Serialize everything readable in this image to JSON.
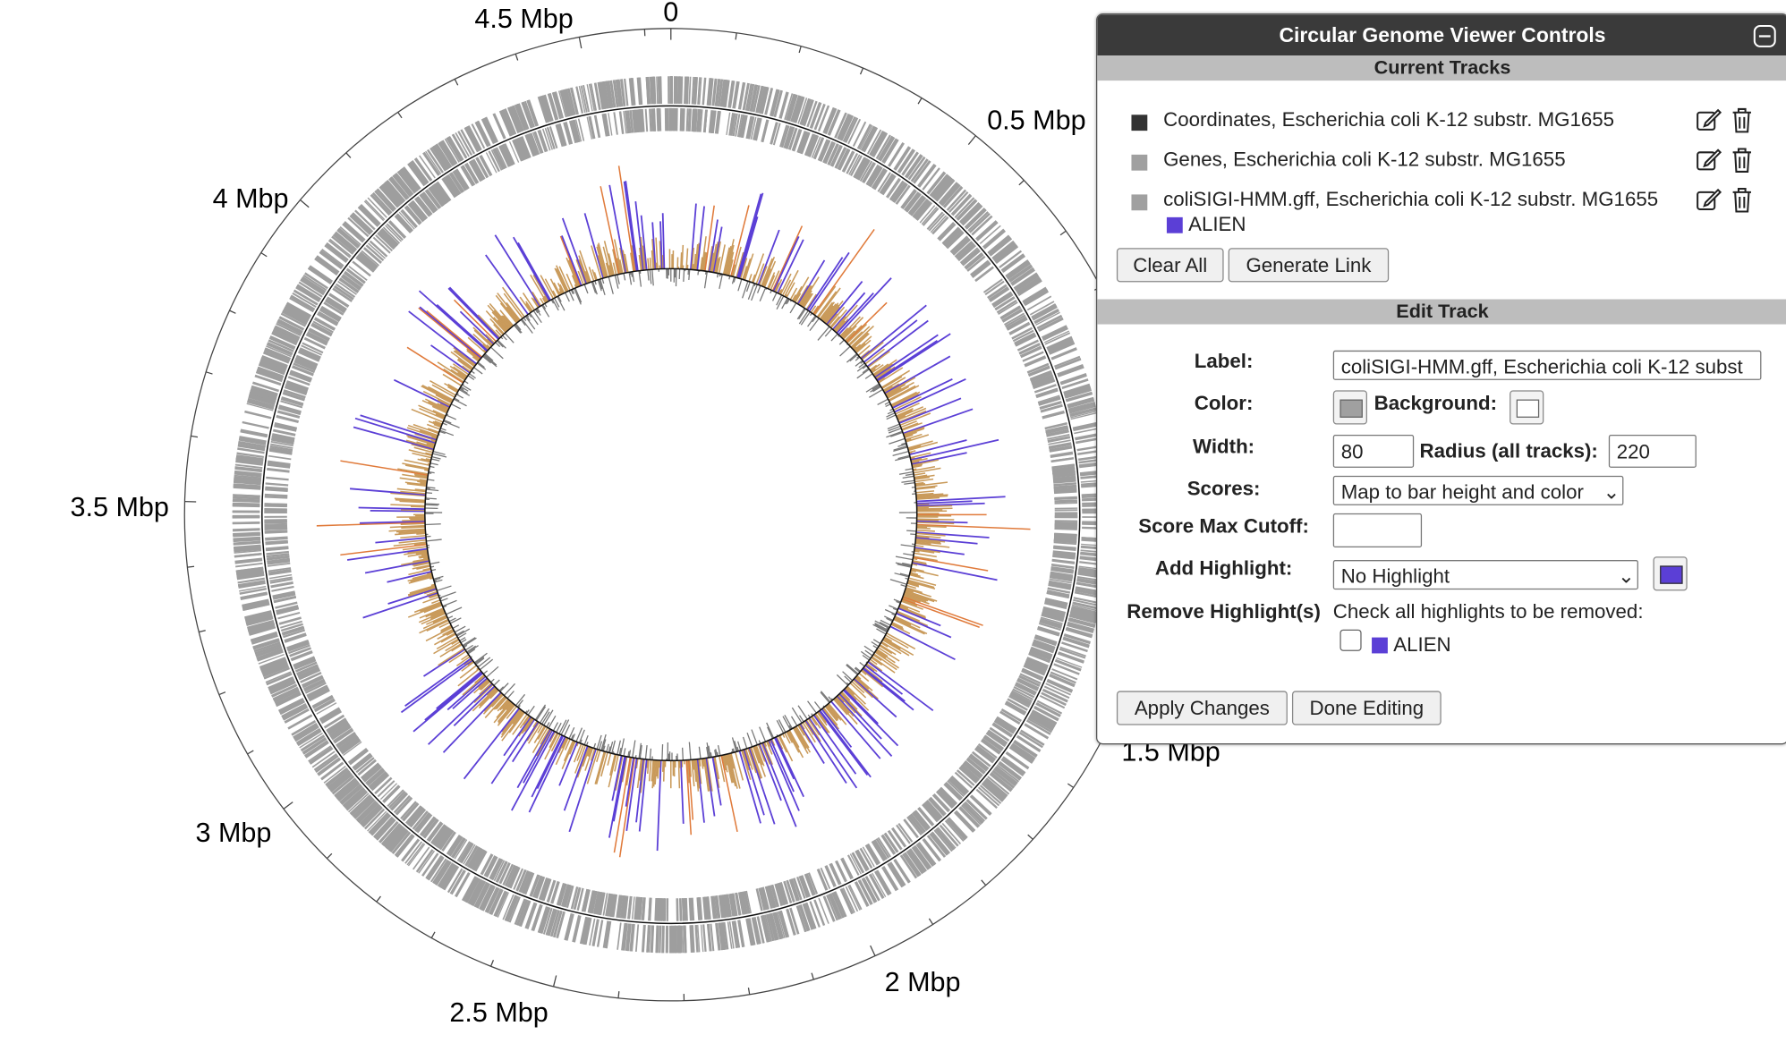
{
  "genome_map": {
    "tick_labels": [
      "0",
      "0.5 Mbp",
      "1.5 Mbp",
      "2 Mbp",
      "2.5 Mbp",
      "3 Mbp",
      "3.5 Mbp",
      "4 Mbp",
      "4.5 Mbp"
    ]
  },
  "panel": {
    "title": "Circular Genome Viewer Controls",
    "current_tracks": {
      "title": "Current Tracks",
      "tracks": [
        {
          "label": "Coordinates, Escherichia coli K-12 substr. MG1655"
        },
        {
          "label": "Genes, Escherichia coli K-12 substr. MG1655"
        },
        {
          "label": "coliSIGI-HMM.gff, Escherichia coli K-12 substr. MG1655",
          "highlight": "ALIEN"
        }
      ],
      "buttons": [
        "Clear All",
        "Generate Link"
      ]
    },
    "edit_track": {
      "title": "Edit Track",
      "label_field": {
        "label": "Label:",
        "value": "coliSIGI-HMM.gff, Escherichia coli K-12 subst"
      },
      "color_field": {
        "label": "Color:",
        "background_label": "Background:"
      },
      "width_field": {
        "label": "Width:",
        "value": "80",
        "radius_label": "Radius (all tracks):",
        "radius_value": "220"
      },
      "scores_field": {
        "label": "Scores:",
        "value": "Map to bar height and color"
      },
      "cutoff_field": {
        "label": "Score Max Cutoff:"
      },
      "highlight_field": {
        "label": "Add Highlight:",
        "value": "No Highlight"
      },
      "remove_field": {
        "label": "Remove Highlight(s)",
        "hint": "Check all highlights to be removed:",
        "item": "ALIEN"
      },
      "buttons": [
        "Apply Changes",
        "Done Editing"
      ]
    }
  }
}
